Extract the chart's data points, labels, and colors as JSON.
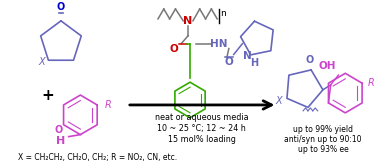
{
  "bg_color": "#ffffff",
  "figsize": [
    3.78,
    1.65
  ],
  "dpi": 100,
  "reaction_conditions": [
    "neat or aqueous media",
    "10 ~ 25 °C; 12 ~ 24 h",
    "15 mol% loading"
  ],
  "results": [
    "up to 99% yield",
    "anti/syn up to 90:10",
    "up to 93% ee"
  ],
  "footnote": "X = CH₂CH₂, CH₂O, CH₂; R = NO₂, CN, etc.",
  "colors": {
    "blue": "#6666bb",
    "red": "#cc0000",
    "green": "#33aa00",
    "magenta": "#cc44cc",
    "black": "#000000",
    "gray": "#777777",
    "dark_blue": "#0000cc"
  }
}
